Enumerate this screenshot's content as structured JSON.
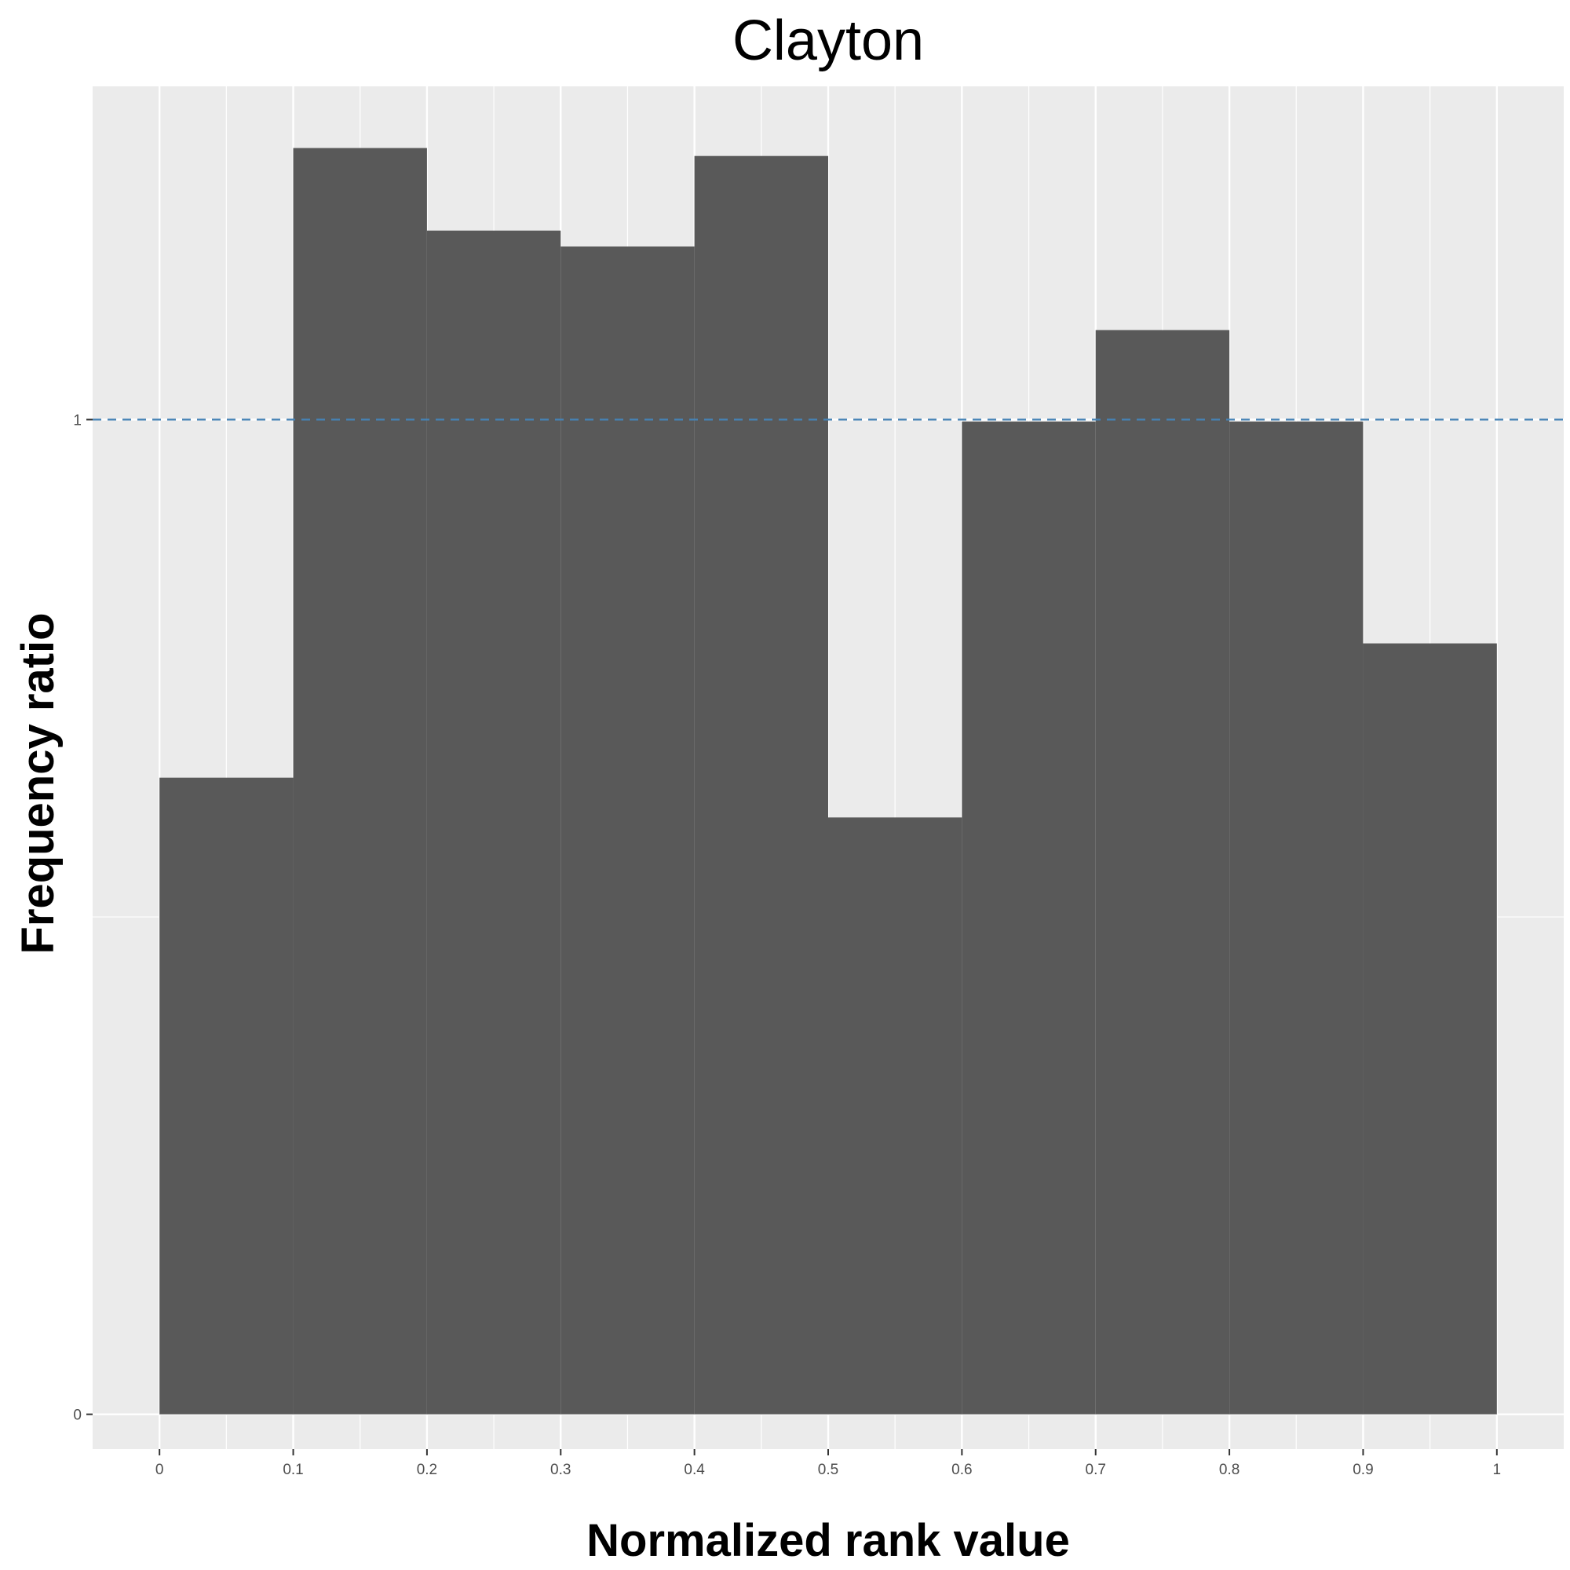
{
  "chart_data": {
    "type": "bar",
    "title": "Clayton",
    "xlabel": "Normalized rank value",
    "ylabel": "Frequency ratio",
    "bin_edges": [
      0,
      0.1,
      0.2,
      0.3,
      0.4,
      0.5,
      0.6,
      0.7,
      0.8,
      0.9,
      1.0
    ],
    "values": [
      0.64,
      1.273,
      1.19,
      1.174,
      1.265,
      0.6,
      0.998,
      1.09,
      0.998,
      0.775
    ],
    "x_ticks": [
      0,
      0.1,
      0.2,
      0.3,
      0.4,
      0.5,
      0.6,
      0.7,
      0.8,
      0.9,
      1.0
    ],
    "x_tick_labels": [
      "0",
      "0.1",
      "0.2",
      "0.3",
      "0.4",
      "0.5",
      "0.6",
      "0.7",
      "0.8",
      "0.9",
      "1"
    ],
    "y_ticks": [
      0,
      1
    ],
    "y_tick_labels": [
      "0",
      "1"
    ],
    "xlim": [
      -0.05,
      1.05
    ],
    "ylim": [
      -0.035,
      1.335
    ],
    "reference_line": {
      "y": 1,
      "style": "dashed",
      "color": "#4682b4"
    },
    "bar_color": "#595959",
    "panel_color": "#ebebeb",
    "grid": true
  }
}
